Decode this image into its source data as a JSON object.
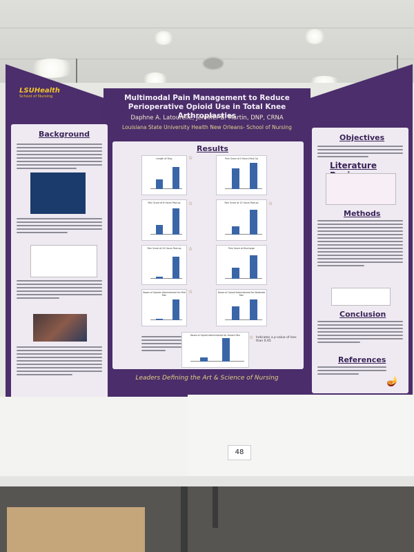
{
  "poster": {
    "logo_main": "LSUHealth",
    "logo_sub": "School of Nursing",
    "title": "Multimodal Pain Management to Reduce Perioperative Opioid Use in Total Knee Arthroplasties",
    "authors": "Daphne A. Latourelle; Jennifer B. Martin, DNP, CRNA",
    "affiliation": "Louisiana State University Health New Orleans- School of Nursing",
    "footer": "Leaders Defining the Art & Science of Nursing"
  },
  "sections": {
    "background": "Background",
    "results": "Results",
    "objectives": "Objectives",
    "literature_review": "Literature Review",
    "methods": "Methods",
    "conclusion": "Conclusion",
    "references": "References"
  },
  "charts": [
    {
      "title": "Length of Stay"
    },
    {
      "title": "Pain Score at 0 Hours Post-Op"
    },
    {
      "title": "Pain Score at 6 Hours Post-op"
    },
    {
      "title": "Pain Score at 12 Hours Post-op"
    },
    {
      "title": "Pain Score at 24 Hours Post-op"
    },
    {
      "title": "Pain Score at Discharge"
    },
    {
      "title": "Doses of Opioids Administered for Mild Pain"
    },
    {
      "title": "Doses of Opioid Administered for Moderate Pain"
    },
    {
      "title": "Doses of Opioid Administered for Severe Pain"
    }
  ],
  "legend": {
    "note": "Indicates a p-value of less than 0.05"
  },
  "table_card": "48"
}
